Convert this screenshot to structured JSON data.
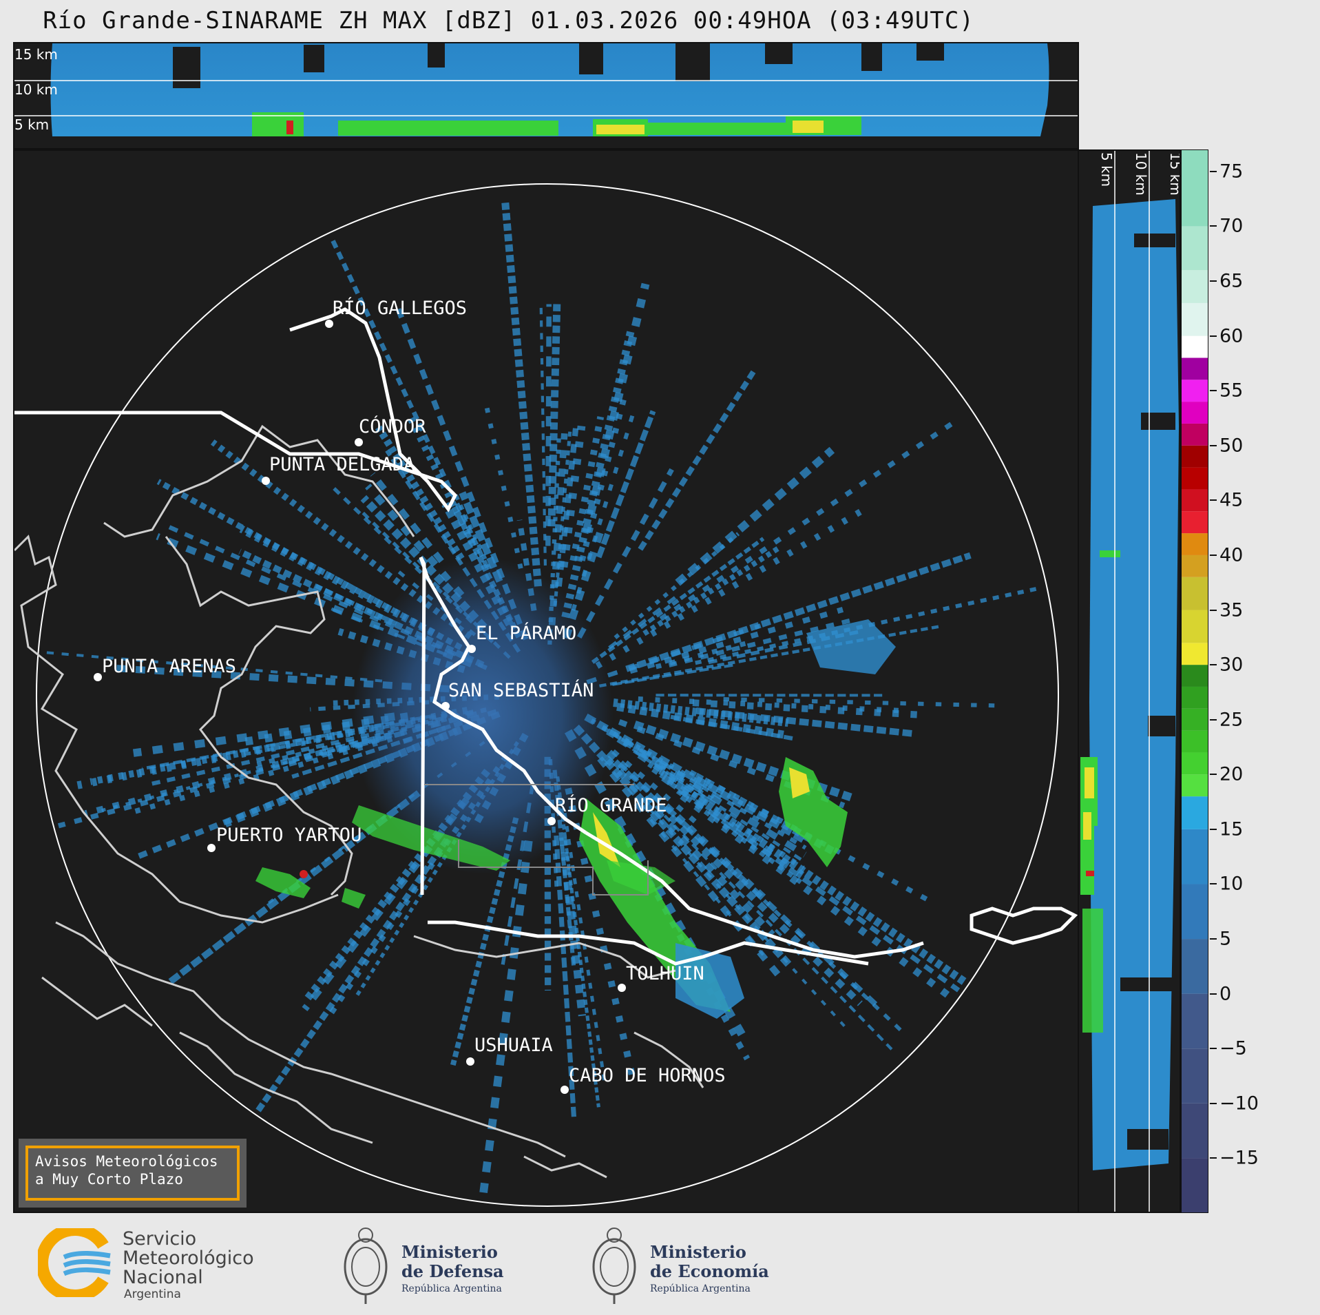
{
  "title": "Río Grande-SINARAME ZH MAX [dBZ] 01.03.2026 00:49HOA (03:49UTC)",
  "altitude_labels": [
    "15 km",
    "10 km",
    "5 km"
  ],
  "side_altitude_labels": [
    "5 km",
    "10 km",
    "15 km"
  ],
  "cities": [
    {
      "name": "RÍO GALLEGOS"
    },
    {
      "name": "CÓNDOR"
    },
    {
      "name": "PUNTA DELGADA"
    },
    {
      "name": "EL PÁRAMO"
    },
    {
      "name": "PUNTA ARENAS"
    },
    {
      "name": "SAN SEBASTIÁN"
    },
    {
      "name": "RÍO GRANDE"
    },
    {
      "name": "PUERTO YARTOU"
    },
    {
      "name": "TOLHUIN"
    },
    {
      "name": "USHUAIA"
    },
    {
      "name": "CABO DE HORNOS"
    }
  ],
  "colorbar": {
    "unit": "dBZ",
    "ticks": [
      "75",
      "70",
      "65",
      "60",
      "55",
      "50",
      "45",
      "40",
      "35",
      "30",
      "25",
      "20",
      "15",
      "10",
      "5",
      "0",
      "−5",
      "−10",
      "−15"
    ],
    "range": [
      -20,
      77
    ]
  },
  "alert_box": {
    "line1": "Avisos Meteorológicos",
    "line2": "a Muy Corto Plazo"
  },
  "logos": {
    "smn_line1": "Servicio",
    "smn_line2": "Meteorológico",
    "smn_line3": "Nacional",
    "smn_line4": "Argentina",
    "defensa_line1": "Ministerio",
    "defensa_line2": "de Defensa",
    "defensa_line3": "República Argentina",
    "economia_line1": "Ministerio",
    "economia_line2": "de Economía",
    "economia_line3": "República Argentina"
  },
  "colors": {
    "background": "#1c1c1c",
    "light_echo": "#2f8fd0",
    "moderate_echo": "#3ad13a",
    "strong_echo": "#e8e030",
    "alert_border": "#f0a000"
  }
}
